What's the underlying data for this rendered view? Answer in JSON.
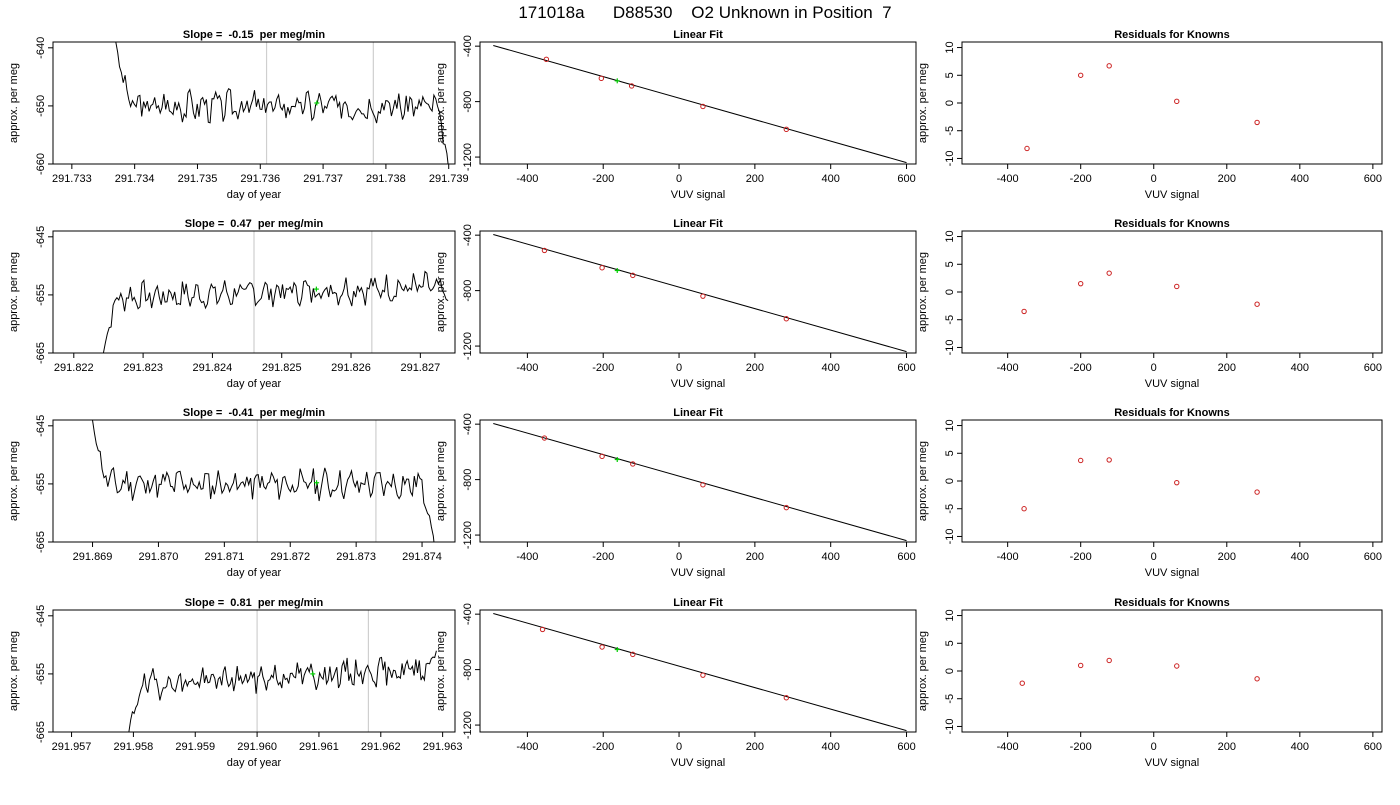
{
  "header": {
    "title": "171018a      D88530    O2 Unknown in Position  7"
  },
  "chart_data": [
    {
      "type": "line",
      "row": 0,
      "col": 0,
      "title": "Slope =  -0.15  per meg/min",
      "xlabel": "day of year",
      "ylabel": "approx. per meg",
      "xlim": [
        291.7327,
        291.7391
      ],
      "ylim": [
        -660,
        -639
      ],
      "xticks": [
        "291.733",
        "291.734",
        "291.735",
        "291.736",
        "291.737",
        "291.738",
        "291.739"
      ],
      "xtick_values": [
        291.733,
        291.734,
        291.735,
        291.736,
        291.737,
        291.738,
        291.739
      ],
      "yticks": [
        "-660",
        "-650",
        "-640"
      ],
      "ytick_values": [
        -660,
        -650,
        -640
      ],
      "vlines": [
        291.7361,
        291.7378
      ],
      "trace": {
        "x_start": 291.7337,
        "x_end": 291.739,
        "baseline": -650.0,
        "amp": 2.0,
        "start_y": -639,
        "end_y": -661,
        "seed": 3
      },
      "marker": {
        "x": 291.7369,
        "y": -649.5,
        "color": "#00cc00"
      }
    },
    {
      "type": "scatter",
      "row": 0,
      "col": 1,
      "title": "Linear Fit",
      "xlabel": "VUV signal",
      "ylabel": "approx. per meg",
      "xlim": [
        -525,
        625
      ],
      "ylim": [
        -1250,
        -370
      ],
      "xticks": [
        "-400",
        "-200",
        "0",
        "200",
        "400",
        "600"
      ],
      "xtick_values": [
        -400,
        -200,
        0,
        200,
        400,
        600
      ],
      "yticks": [
        "-1200",
        "-800",
        "-400"
      ],
      "ytick_values": [
        -1200,
        -800,
        -400
      ],
      "fit_line": {
        "x": [
          -490,
          600
        ],
        "y": [
          -395,
          -1240
        ]
      },
      "points": {
        "x": [
          -350,
          -205,
          -125,
          63,
          283
        ],
        "y": [
          -495,
          -632,
          -687,
          -835,
          -1000
        ],
        "color": "#cc2222"
      },
      "marker": {
        "x": -163,
        "y": -650,
        "color": "#00cc00"
      }
    },
    {
      "type": "scatter",
      "row": 0,
      "col": 2,
      "title": "Residuals for Knowns",
      "xlabel": "VUV signal",
      "ylabel": "approx. per meg",
      "xlim": [
        -525,
        625
      ],
      "ylim": [
        -11,
        11
      ],
      "xticks": [
        "-400",
        "-200",
        "0",
        "200",
        "400",
        "600"
      ],
      "xtick_values": [
        -400,
        -200,
        0,
        200,
        400,
        600
      ],
      "yticks": [
        "-10",
        "-5",
        "0",
        "5",
        "10"
      ],
      "ytick_values": [
        -10,
        -5,
        0,
        5,
        10
      ],
      "points": {
        "x": [
          -347,
          -200,
          -122,
          63,
          283
        ],
        "y": [
          -8.2,
          5.0,
          6.7,
          0.3,
          -3.5
        ],
        "color": "#cc2222"
      }
    },
    {
      "type": "line",
      "row": 1,
      "col": 0,
      "title": "Slope =  0.47  per meg/min",
      "xlabel": "day of year",
      "ylabel": "approx. per meg",
      "xlim": [
        291.8217,
        291.8275
      ],
      "ylim": [
        -665,
        -644
      ],
      "xticks": [
        "291.822",
        "291.823",
        "291.824",
        "291.825",
        "291.826",
        "291.827"
      ],
      "xtick_values": [
        291.822,
        291.823,
        291.824,
        291.825,
        291.826,
        291.827
      ],
      "yticks": [
        "-665",
        "-655",
        "-645"
      ],
      "ytick_values": [
        -665,
        -655,
        -645
      ],
      "vlines": [
        291.8246,
        291.8263
      ],
      "trace": {
        "x_start": 291.8224,
        "x_end": 291.8274,
        "baseline": -654.5,
        "amp": 1.8,
        "start_y": -667,
        "end_y": -656,
        "seed": 7,
        "slope": 2.0
      },
      "marker": {
        "x": 291.8255,
        "y": -654.0,
        "color": "#00cc00"
      }
    },
    {
      "type": "scatter",
      "row": 1,
      "col": 1,
      "title": "Linear Fit",
      "xlabel": "VUV signal",
      "ylabel": "approx. per meg",
      "xlim": [
        -525,
        625
      ],
      "ylim": [
        -1250,
        -370
      ],
      "xticks": [
        "-400",
        "-200",
        "0",
        "200",
        "400",
        "600"
      ],
      "xtick_values": [
        -400,
        -200,
        0,
        200,
        400,
        600
      ],
      "yticks": [
        "-1200",
        "-800",
        "-400"
      ],
      "ytick_values": [
        -1200,
        -800,
        -400
      ],
      "fit_line": {
        "x": [
          -490,
          600
        ],
        "y": [
          -395,
          -1240
        ]
      },
      "points": {
        "x": [
          -355,
          -203,
          -122,
          63,
          283
        ],
        "y": [
          -510,
          -635,
          -690,
          -840,
          -1003
        ],
        "color": "#cc2222"
      },
      "marker": {
        "x": -163,
        "y": -655,
        "color": "#00cc00"
      }
    },
    {
      "type": "scatter",
      "row": 1,
      "col": 2,
      "title": "Residuals for Knowns",
      "xlabel": "VUV signal",
      "ylabel": "approx. per meg",
      "xlim": [
        -525,
        625
      ],
      "ylim": [
        -11,
        11
      ],
      "xticks": [
        "-400",
        "-200",
        "0",
        "200",
        "400",
        "600"
      ],
      "xtick_values": [
        -400,
        -200,
        0,
        200,
        400,
        600
      ],
      "yticks": [
        "-10",
        "-5",
        "0",
        "5",
        "10"
      ],
      "ytick_values": [
        -10,
        -5,
        0,
        5,
        10
      ],
      "points": {
        "x": [
          -355,
          -200,
          -122,
          63,
          283
        ],
        "y": [
          -3.5,
          1.5,
          3.4,
          1.0,
          -2.2
        ],
        "color": "#cc2222"
      }
    },
    {
      "type": "line",
      "row": 2,
      "col": 0,
      "title": "Slope =  -0.41  per meg/min",
      "xlabel": "day of year",
      "ylabel": "approx. per meg",
      "xlim": [
        291.8684,
        291.8745
      ],
      "ylim": [
        -665,
        -644
      ],
      "xticks": [
        "291.869",
        "291.870",
        "291.871",
        "291.872",
        "291.873",
        "291.874"
      ],
      "xtick_values": [
        291.869,
        291.87,
        291.871,
        291.872,
        291.873,
        291.874
      ],
      "yticks": [
        "-665",
        "-655",
        "-645"
      ],
      "ytick_values": [
        -665,
        -655,
        -645
      ],
      "vlines": [
        291.8715,
        291.8733
      ],
      "trace": {
        "x_start": 291.869,
        "x_end": 291.8742,
        "baseline": -655.0,
        "amp": 1.9,
        "start_y": -644,
        "end_y": -667,
        "seed": 11
      },
      "marker": {
        "x": 291.8724,
        "y": -654.8,
        "color": "#00cc00"
      }
    },
    {
      "type": "scatter",
      "row": 2,
      "col": 1,
      "title": "Linear Fit",
      "xlabel": "VUV signal",
      "ylabel": "approx. per meg",
      "xlim": [
        -525,
        625
      ],
      "ylim": [
        -1250,
        -370
      ],
      "xticks": [
        "-400",
        "-200",
        "0",
        "200",
        "400",
        "600"
      ],
      "xtick_values": [
        -400,
        -200,
        0,
        200,
        400,
        600
      ],
      "yticks": [
        "-1200",
        "-800",
        "-400"
      ],
      "ytick_values": [
        -1200,
        -800,
        -400
      ],
      "fit_line": {
        "x": [
          -490,
          600
        ],
        "y": [
          -395,
          -1240
        ]
      },
      "points": {
        "x": [
          -355,
          -203,
          -122,
          63,
          283
        ],
        "y": [
          -500,
          -632,
          -687,
          -837,
          -1002
        ],
        "color": "#cc2222"
      },
      "marker": {
        "x": -163,
        "y": -655,
        "color": "#00cc00"
      }
    },
    {
      "type": "scatter",
      "row": 2,
      "col": 2,
      "title": "Residuals for Knowns",
      "xlabel": "VUV signal",
      "ylabel": "approx. per meg",
      "xlim": [
        -525,
        625
      ],
      "ylim": [
        -11,
        11
      ],
      "xticks": [
        "-400",
        "-200",
        "0",
        "200",
        "400",
        "600"
      ],
      "xtick_values": [
        -400,
        -200,
        0,
        200,
        400,
        600
      ],
      "yticks": [
        "-10",
        "-5",
        "0",
        "5",
        "10"
      ],
      "ytick_values": [
        -10,
        -5,
        0,
        5,
        10
      ],
      "points": {
        "x": [
          -355,
          -200,
          -122,
          63,
          283
        ],
        "y": [
          -5.0,
          3.7,
          3.8,
          -0.3,
          -2.0
        ],
        "color": "#cc2222"
      }
    },
    {
      "type": "line",
      "row": 3,
      "col": 0,
      "title": "Slope =  0.81  per meg/min",
      "xlabel": "day of year",
      "ylabel": "approx. per meg",
      "xlim": [
        291.9567,
        291.9632
      ],
      "ylim": [
        -665,
        -644
      ],
      "xticks": [
        "291.957",
        "291.958",
        "291.959",
        "291.960",
        "291.961",
        "291.962",
        "291.963"
      ],
      "xtick_values": [
        291.957,
        291.958,
        291.959,
        291.96,
        291.961,
        291.962,
        291.963
      ],
      "yticks": [
        "-665",
        "-655",
        "-645"
      ],
      "ytick_values": [
        -665,
        -655,
        -645
      ],
      "vlines": [
        291.96,
        291.9618
      ],
      "trace": {
        "x_start": 291.9579,
        "x_end": 291.9629,
        "baseline": -655.5,
        "amp": 1.8,
        "start_y": -667,
        "end_y": -651,
        "seed": 19,
        "slope": 3.0
      },
      "marker": {
        "x": 291.9609,
        "y": -655.0,
        "color": "#00cc00"
      }
    },
    {
      "type": "scatter",
      "row": 3,
      "col": 1,
      "title": "Linear Fit",
      "xlabel": "VUV signal",
      "ylabel": "approx. per meg",
      "xlim": [
        -525,
        625
      ],
      "ylim": [
        -1250,
        -370
      ],
      "xticks": [
        "-400",
        "-200",
        "0",
        "200",
        "400",
        "600"
      ],
      "xtick_values": [
        -400,
        -200,
        0,
        200,
        400,
        600
      ],
      "yticks": [
        "-1200",
        "-800",
        "-400"
      ],
      "ytick_values": [
        -1200,
        -800,
        -400
      ],
      "fit_line": {
        "x": [
          -490,
          600
        ],
        "y": [
          -395,
          -1240
        ]
      },
      "points": {
        "x": [
          -360,
          -203,
          -122,
          63,
          283
        ],
        "y": [
          -510,
          -637,
          -690,
          -840,
          -1003
        ],
        "color": "#cc2222"
      },
      "marker": {
        "x": -163,
        "y": -655,
        "color": "#00cc00"
      }
    },
    {
      "type": "scatter",
      "row": 3,
      "col": 2,
      "title": "Residuals for Knowns",
      "xlabel": "VUV signal",
      "ylabel": "approx. per meg",
      "xlim": [
        -525,
        625
      ],
      "ylim": [
        -11,
        11
      ],
      "xticks": [
        "-400",
        "-200",
        "0",
        "200",
        "400",
        "600"
      ],
      "xtick_values": [
        -400,
        -200,
        0,
        200,
        400,
        600
      ],
      "yticks": [
        "-10",
        "-5",
        "0",
        "5",
        "10"
      ],
      "ytick_values": [
        -10,
        -5,
        0,
        5,
        10
      ],
      "points": {
        "x": [
          -360,
          -200,
          -122,
          63,
          283
        ],
        "y": [
          -2.2,
          1.0,
          1.9,
          0.9,
          -1.4
        ],
        "color": "#cc2222"
      }
    }
  ]
}
